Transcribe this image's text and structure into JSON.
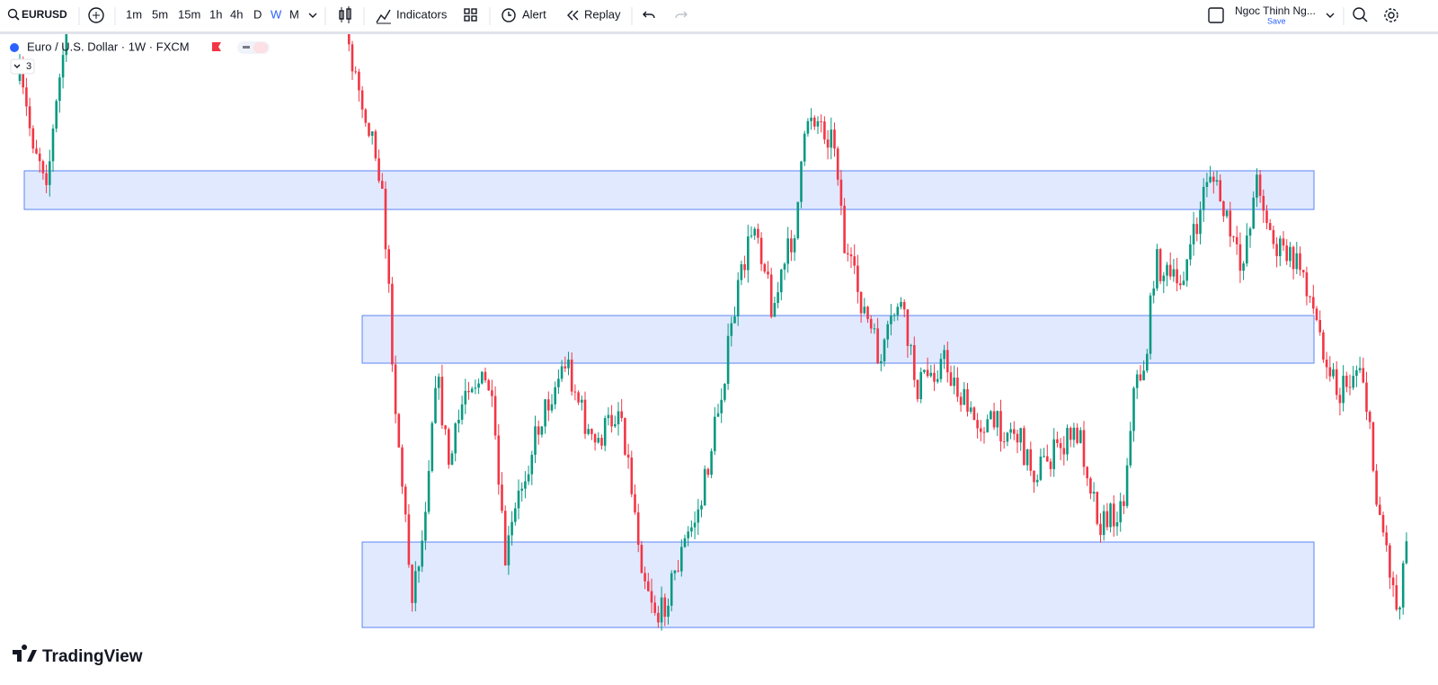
{
  "toolbar": {
    "symbol": "EURUSD",
    "intervals": [
      "1m",
      "5m",
      "15m",
      "1h",
      "4h",
      "D",
      "W",
      "M"
    ],
    "indicators": "Indicators",
    "alert": "Alert",
    "replay": "Replay",
    "user": "Ngoc Thinh Ng...",
    "save": "Save"
  },
  "legend": {
    "title": "Euro / U.S. Dollar · 1W · FXCM",
    "count": "3"
  },
  "footer": {
    "brand": "TradingView"
  }
}
